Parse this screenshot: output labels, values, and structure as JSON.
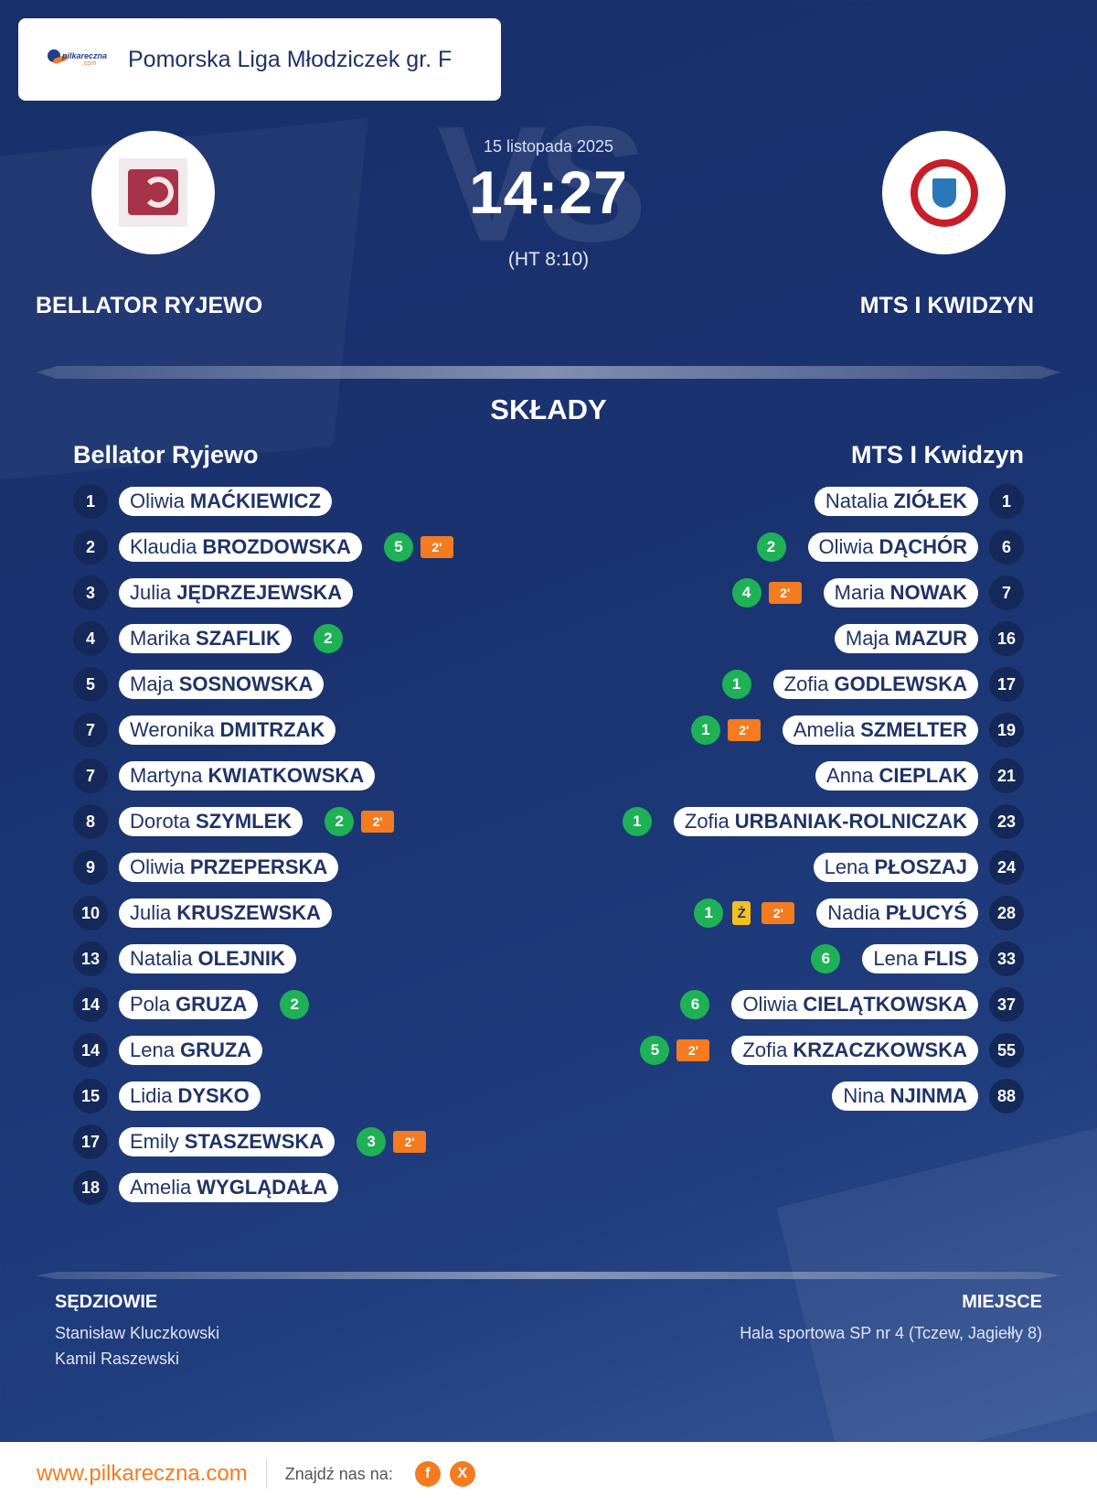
{
  "header": {
    "league": "Pomorska Liga Młodziczek gr. F",
    "logo_text": "pilkareczna",
    "logo_sub": ".com"
  },
  "match": {
    "date": "15 listopada 2025",
    "score": "14:27",
    "halftime": "(HT 8:10)",
    "vs_text": "VS",
    "home_team": "BELLATOR RYJEWO",
    "away_team": "MTS I KWIDZYN"
  },
  "section_title": "SKŁADY",
  "home": {
    "title": "Bellator Ryjewo",
    "players": [
      {
        "num": "1",
        "first": "Oliwia",
        "last": "MAĆKIEWICZ",
        "goals": "",
        "yellow": "",
        "susp": ""
      },
      {
        "num": "2",
        "first": "Klaudia",
        "last": "BROZDOWSKA",
        "goals": "5",
        "yellow": "",
        "susp": "2'"
      },
      {
        "num": "3",
        "first": "Julia",
        "last": "JĘDRZEJEWSKA",
        "goals": "",
        "yellow": "",
        "susp": ""
      },
      {
        "num": "4",
        "first": "Marika",
        "last": "SZAFLIK",
        "goals": "2",
        "yellow": "",
        "susp": ""
      },
      {
        "num": "5",
        "first": "Maja",
        "last": "SOSNOWSKA",
        "goals": "",
        "yellow": "",
        "susp": ""
      },
      {
        "num": "7",
        "first": "Weronika",
        "last": "DMITRZAK",
        "goals": "",
        "yellow": "",
        "susp": ""
      },
      {
        "num": "7",
        "first": "Martyna",
        "last": "KWIATKOWSKA",
        "goals": "",
        "yellow": "",
        "susp": ""
      },
      {
        "num": "8",
        "first": "Dorota",
        "last": "SZYMLEK",
        "goals": "2",
        "yellow": "",
        "susp": "2'"
      },
      {
        "num": "9",
        "first": "Oliwia",
        "last": "PRZEPERSKA",
        "goals": "",
        "yellow": "",
        "susp": ""
      },
      {
        "num": "10",
        "first": "Julia",
        "last": "KRUSZEWSKA",
        "goals": "",
        "yellow": "",
        "susp": ""
      },
      {
        "num": "13",
        "first": "Natalia",
        "last": "OLEJNIK",
        "goals": "",
        "yellow": "",
        "susp": ""
      },
      {
        "num": "14",
        "first": "Pola",
        "last": "GRUZA",
        "goals": "2",
        "yellow": "",
        "susp": ""
      },
      {
        "num": "14",
        "first": "Lena",
        "last": "GRUZA",
        "goals": "",
        "yellow": "",
        "susp": ""
      },
      {
        "num": "15",
        "first": "Lidia",
        "last": "DYSKO",
        "goals": "",
        "yellow": "",
        "susp": ""
      },
      {
        "num": "17",
        "first": "Emily",
        "last": "STASZEWSKA",
        "goals": "3",
        "yellow": "",
        "susp": "2'"
      },
      {
        "num": "18",
        "first": "Amelia",
        "last": "WYGLĄDAŁA",
        "goals": "",
        "yellow": "",
        "susp": ""
      }
    ]
  },
  "away": {
    "title": "MTS I Kwidzyn",
    "players": [
      {
        "num": "1",
        "first": "Natalia",
        "last": "ZIÓŁEK",
        "goals": "",
        "yellow": "",
        "susp": ""
      },
      {
        "num": "6",
        "first": "Oliwia",
        "last": "DĄCHÓR",
        "goals": "2",
        "yellow": "",
        "susp": ""
      },
      {
        "num": "7",
        "first": "Maria",
        "last": "NOWAK",
        "goals": "4",
        "yellow": "",
        "susp": "2'"
      },
      {
        "num": "16",
        "first": "Maja",
        "last": "MAZUR",
        "goals": "",
        "yellow": "",
        "susp": ""
      },
      {
        "num": "17",
        "first": "Zofia",
        "last": "GODLEWSKA",
        "goals": "1",
        "yellow": "",
        "susp": ""
      },
      {
        "num": "19",
        "first": "Amelia",
        "last": "SZMELTER",
        "goals": "1",
        "yellow": "",
        "susp": "2'"
      },
      {
        "num": "21",
        "first": "Anna",
        "last": "CIEPLAK",
        "goals": "",
        "yellow": "",
        "susp": ""
      },
      {
        "num": "23",
        "first": "Zofia",
        "last": "URBANIAK-ROLNICZAK",
        "goals": "1",
        "yellow": "",
        "susp": ""
      },
      {
        "num": "24",
        "first": "Lena",
        "last": "PŁOSZAJ",
        "goals": "",
        "yellow": "",
        "susp": ""
      },
      {
        "num": "28",
        "first": "Nadia",
        "last": "PŁUCYŚ",
        "goals": "1",
        "yellow": "Ż",
        "susp": "2'"
      },
      {
        "num": "33",
        "first": "Lena",
        "last": "FLIS",
        "goals": "6",
        "yellow": "",
        "susp": ""
      },
      {
        "num": "37",
        "first": "Oliwia",
        "last": "CIELĄTKOWSKA",
        "goals": "6",
        "yellow": "",
        "susp": ""
      },
      {
        "num": "55",
        "first": "Zofia",
        "last": "KRZACZKOWSKA",
        "goals": "5",
        "yellow": "",
        "susp": "2'"
      },
      {
        "num": "88",
        "first": "Nina",
        "last": "NJINMA",
        "goals": "",
        "yellow": "",
        "susp": ""
      }
    ]
  },
  "referees": {
    "title": "SĘDZIOWIE",
    "names": [
      "Stanisław Kluczkowski",
      "Kamil Raszewski"
    ]
  },
  "venue": {
    "title": "MIEJSCE",
    "place": "Hala sportowa SP nr 4 (Tczew, Jagiełły 8)"
  },
  "footer": {
    "url": "www.pilkareczna.com",
    "find_us": "Znajdź nas na:",
    "social": [
      {
        "icon": "facebook-icon",
        "glyph": "f"
      },
      {
        "icon": "x-icon",
        "glyph": "X"
      }
    ]
  },
  "colors": {
    "background": "#1a3370",
    "accent": "#f47b20",
    "goal_badge": "#1fb156",
    "yellow_card": "#f4c020",
    "number_circle": "#14285a"
  }
}
